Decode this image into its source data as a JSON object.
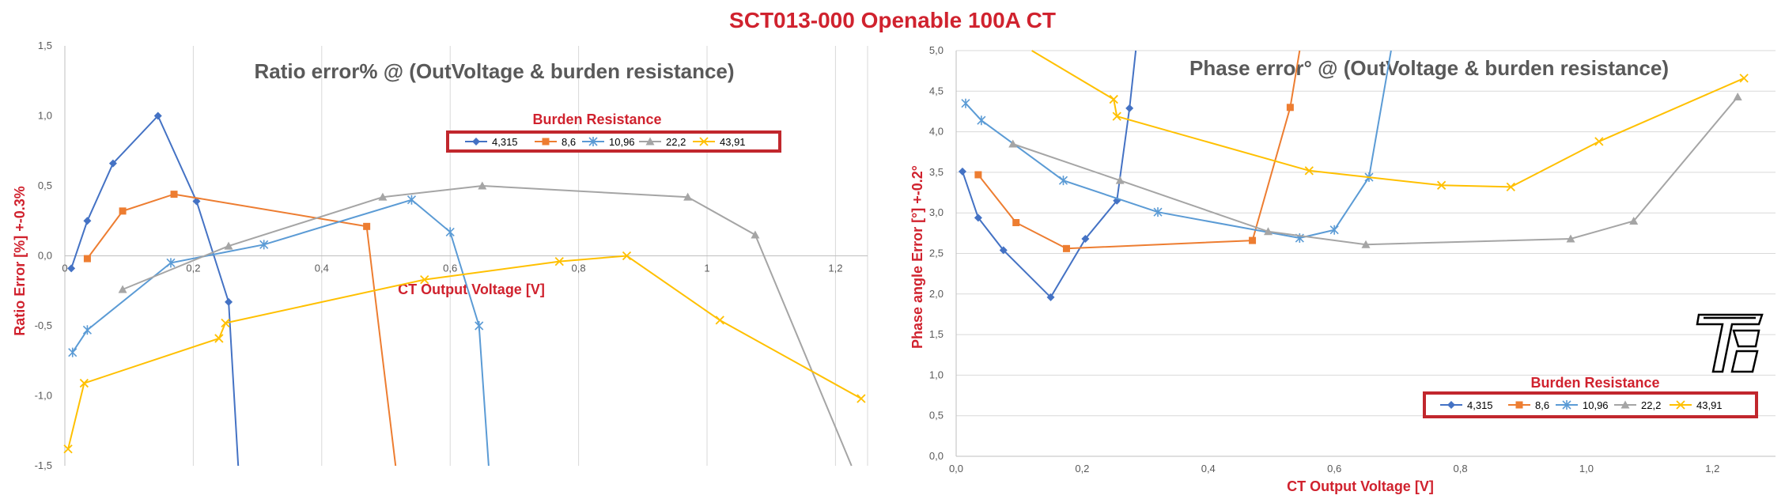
{
  "title": "SCT013-000 Openable 100A CT",
  "colors": {
    "4,315": "#4472c4",
    "8,6": "#ed7d31",
    "10,96": "#5b9bd5",
    "22,2": "#a5a5a5",
    "43,91": "#ffc000",
    "accent_red": "#d0222e"
  },
  "chart_data": [
    {
      "type": "scatter",
      "title": "Ratio error% @ (OutVoltage & burden resistance)",
      "xlabel": "CT Output Voltage [V]",
      "ylabel": "Ratio Error [%] +-0.3%",
      "xlim": [
        0,
        1.25
      ],
      "ylim": [
        -1.5,
        1.5
      ],
      "xticks": [
        "0",
        "0,2",
        "0,4",
        "0,6",
        "0,8",
        "1",
        "1,2"
      ],
      "yticks": [
        "1,5",
        "1,0",
        "0,5",
        "0,0",
        "-0,5",
        "-1,0",
        "-1,5"
      ],
      "legend_title": "Burden Resistance",
      "legend_position": "top-right",
      "grid": "vertical",
      "series": [
        {
          "name": "4,315",
          "marker": "diamond",
          "points": [
            [
              0.01,
              -0.09
            ],
            [
              0.035,
              0.25
            ],
            [
              0.075,
              0.66
            ],
            [
              0.145,
              1.0
            ],
            [
              0.205,
              0.39
            ],
            [
              0.255,
              -0.33
            ]
          ],
          "tail": [
            0.27,
            -1.5
          ]
        },
        {
          "name": "8,6",
          "marker": "square",
          "points": [
            [
              0.035,
              -0.02
            ],
            [
              0.09,
              0.32
            ],
            [
              0.17,
              0.44
            ],
            [
              0.47,
              0.21
            ]
          ],
          "tail": [
            0.515,
            -1.5
          ]
        },
        {
          "name": "10,96",
          "marker": "star",
          "points": [
            [
              0.012,
              -0.69
            ],
            [
              0.035,
              -0.53
            ],
            [
              0.165,
              -0.05
            ],
            [
              0.31,
              0.08
            ],
            [
              0.54,
              0.4
            ],
            [
              0.6,
              0.17
            ],
            [
              0.645,
              -0.5
            ]
          ],
          "tail": [
            0.66,
            -1.5
          ]
        },
        {
          "name": "22,2",
          "marker": "triangle",
          "points": [
            [
              0.09,
              -0.24
            ],
            [
              0.255,
              0.07
            ],
            [
              0.495,
              0.42
            ],
            [
              0.65,
              0.5
            ],
            [
              0.97,
              0.42
            ],
            [
              1.075,
              0.15
            ]
          ],
          "tail": [
            1.225,
            -1.5
          ]
        },
        {
          "name": "43,91",
          "marker": "x",
          "points": [
            [
              0.005,
              -1.38
            ],
            [
              0.03,
              -0.91
            ],
            [
              0.24,
              -0.59
            ],
            [
              0.25,
              -0.48
            ],
            [
              0.56,
              -0.17
            ],
            [
              0.77,
              -0.04
            ],
            [
              0.875,
              0.0
            ],
            [
              1.02,
              -0.46
            ],
            [
              1.24,
              -1.02
            ]
          ]
        }
      ]
    },
    {
      "type": "scatter",
      "title": "Phase error° @ (OutVoltage & burden resistance)",
      "xlabel": "CT Output Voltage [V]",
      "ylabel": "Phase angle Error [°] +-0.2°",
      "xlim": [
        0,
        1.3
      ],
      "ylim": [
        0,
        5
      ],
      "xticks": [
        "0,0",
        "0,2",
        "0,4",
        "0,6",
        "0,8",
        "1,0",
        "1,2"
      ],
      "yticks": [
        "5,0",
        "4,5",
        "4,0",
        "3,5",
        "3,0",
        "2,5",
        "2,0",
        "1,5",
        "1,0",
        "0,5",
        "0,0"
      ],
      "legend_title": "Burden Resistance",
      "legend_position": "bottom-right",
      "grid": "horizontal",
      "series": [
        {
          "name": "4,315",
          "marker": "diamond",
          "points": [
            [
              0.01,
              3.51
            ],
            [
              0.035,
              2.94
            ],
            [
              0.075,
              2.54
            ],
            [
              0.15,
              1.96
            ],
            [
              0.205,
              2.68
            ],
            [
              0.255,
              3.15
            ],
            [
              0.275,
              4.29
            ]
          ],
          "tail": [
            0.285,
            5.0
          ]
        },
        {
          "name": "8,6",
          "marker": "square",
          "points": [
            [
              0.035,
              3.47
            ],
            [
              0.095,
              2.88
            ],
            [
              0.175,
              2.56
            ],
            [
              0.47,
              2.66
            ],
            [
              0.53,
              4.3
            ]
          ],
          "tail": [
            0.545,
            5.0
          ]
        },
        {
          "name": "10,96",
          "marker": "star",
          "points": [
            [
              0.015,
              4.35
            ],
            [
              0.04,
              4.14
            ],
            [
              0.17,
              3.4
            ],
            [
              0.32,
              3.01
            ],
            [
              0.545,
              2.69
            ],
            [
              0.6,
              2.79
            ],
            [
              0.655,
              3.44
            ]
          ],
          "tail": [
            0.69,
            5.0
          ]
        },
        {
          "name": "22,2",
          "marker": "triangle",
          "points": [
            [
              0.09,
              3.85
            ],
            [
              0.26,
              3.4
            ],
            [
              0.495,
              2.77
            ],
            [
              0.65,
              2.61
            ],
            [
              0.975,
              2.68
            ],
            [
              1.075,
              2.9
            ],
            [
              1.24,
              4.43
            ]
          ]
        },
        {
          "name": "43,91",
          "marker": "x",
          "points": [
            [
              0.25,
              4.4
            ],
            [
              0.255,
              4.19
            ],
            [
              0.56,
              3.52
            ],
            [
              0.77,
              3.34
            ],
            [
              0.88,
              3.32
            ],
            [
              1.02,
              3.88
            ],
            [
              1.25,
              4.66
            ]
          ],
          "head": [
            0.12,
            5.0
          ]
        }
      ]
    }
  ]
}
